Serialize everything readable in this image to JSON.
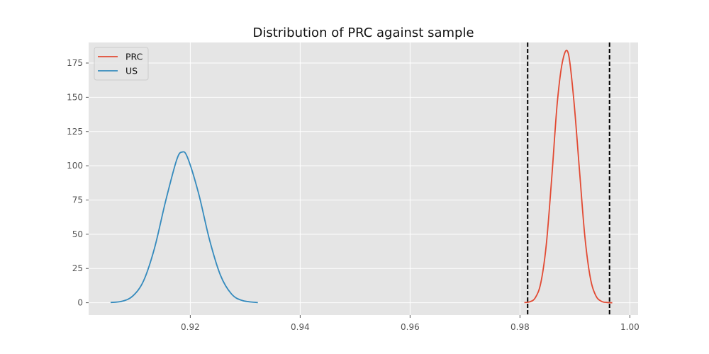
{
  "chart_data": {
    "type": "line",
    "title": "Distribution of PRC against sample",
    "xlabel": "",
    "ylabel": "",
    "xlim": [
      0.9015,
      1.0015
    ],
    "ylim": [
      -9.0,
      190.0
    ],
    "x_ticks": [
      0.92,
      0.94,
      0.96,
      0.98,
      1.0
    ],
    "x_tick_labels": [
      "0.92",
      "0.94",
      "0.96",
      "0.98",
      "1.00"
    ],
    "y_ticks": [
      0,
      25,
      50,
      75,
      100,
      125,
      150,
      175
    ],
    "y_tick_labels": [
      "0",
      "25",
      "50",
      "75",
      "100",
      "125",
      "150",
      "175"
    ],
    "grid": true,
    "legend_position": "top-left",
    "series": [
      {
        "name": "PRC",
        "color": "#E24A33",
        "x": [
          0.9808,
          0.9818,
          0.9828,
          0.9838,
          0.9848,
          0.9858,
          0.9868,
          0.9878,
          0.9888,
          0.9898,
          0.9908,
          0.9918,
          0.9928,
          0.9938,
          0.9948,
          0.9958,
          0.9968
        ],
        "y": [
          0.1,
          0.7,
          3.7,
          14.6,
          42.7,
          92.1,
          146.4,
          177.2,
          182.0,
          148.0,
          98.3,
          48.8,
          18.3,
          5.2,
          1.1,
          0.2,
          0.0
        ]
      },
      {
        "name": "US",
        "color": "#348ABD",
        "x": [
          0.9055,
          0.9075,
          0.9095,
          0.9115,
          0.9135,
          0.9155,
          0.9175,
          0.9185,
          0.9195,
          0.9215,
          0.9235,
          0.9255,
          0.9275,
          0.9295,
          0.9323
        ],
        "y": [
          0.2,
          1.0,
          4.8,
          16.0,
          40.0,
          74.0,
          104.0,
          110.0,
          106.0,
          80.0,
          46.0,
          20.0,
          6.4,
          1.6,
          0.1
        ]
      }
    ],
    "vlines": [
      {
        "x": 0.9814,
        "color": "#000000",
        "style": "dashed"
      },
      {
        "x": 0.9963,
        "color": "#000000",
        "style": "dashed"
      }
    ],
    "background_color": "#E5E5E5",
    "grid_color": "#FFFFFF"
  }
}
